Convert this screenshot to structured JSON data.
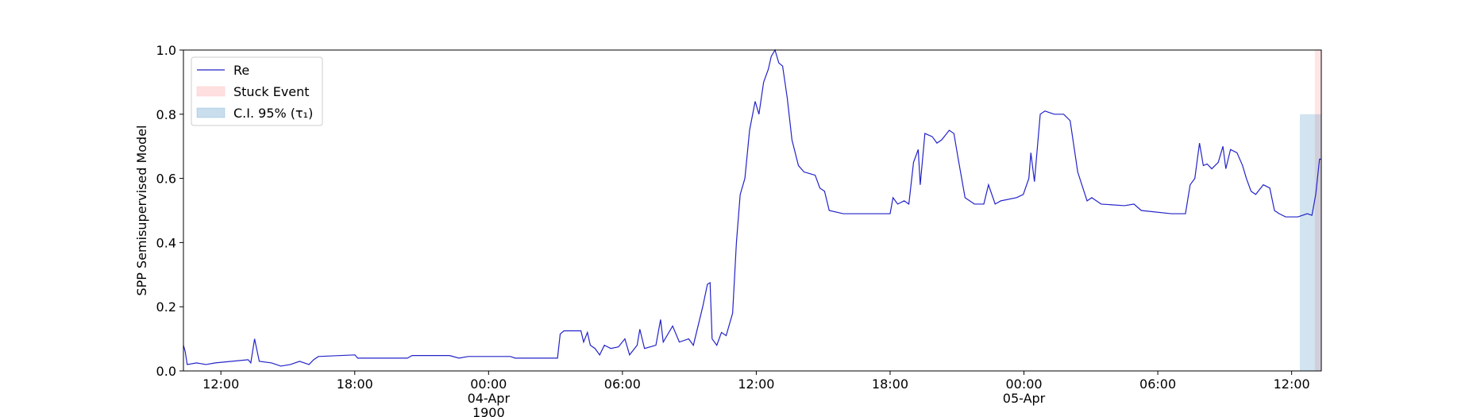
{
  "chart_data": {
    "type": "line",
    "ylabel": "SPP Semisupervised Model",
    "xlim": [
      10.32,
      61.33
    ],
    "ylim": [
      0,
      1
    ],
    "xticks": [
      {
        "value": 12,
        "label": "12:00"
      },
      {
        "value": 18,
        "label": "18:00"
      },
      {
        "value": 24,
        "label": "00:00",
        "date": "04-Apr",
        "year": "1900"
      },
      {
        "value": 30,
        "label": "06:00"
      },
      {
        "value": 36,
        "label": "12:00"
      },
      {
        "value": 42,
        "label": "18:00"
      },
      {
        "value": 48,
        "label": "00:00",
        "date": "05-Apr"
      },
      {
        "value": 54,
        "label": "06:00"
      },
      {
        "value": 60,
        "label": "12:00"
      }
    ],
    "yticks": [
      {
        "value": 0,
        "label": "0.0"
      },
      0.2,
      0.4,
      0.6,
      0.8,
      {
        "value": 1,
        "label": "1.0"
      }
    ],
    "legend": "upper left",
    "series": [
      {
        "name": "Re",
        "color": "#2323c8",
        "x": [
          10.32,
          10.4,
          10.49,
          10.91,
          11.33,
          11.75,
          13.22,
          13.34,
          13.51,
          13.72,
          14.27,
          14.69,
          15.11,
          15.53,
          15.95,
          16.16,
          16.37,
          18.01,
          18.13,
          20.36,
          20.57,
          22.25,
          22.67,
          23.09,
          24.98,
          25.19,
          27.09,
          27.21,
          27.38,
          28.14,
          28.26,
          28.43,
          28.56,
          28.77,
          28.98,
          29.19,
          29.48,
          29.82,
          30.11,
          30.32,
          30.66,
          30.78,
          30.99,
          31.5,
          31.71,
          31.83,
          32.25,
          32.55,
          32.97,
          33.18,
          33.39,
          33.6,
          33.81,
          33.93,
          34.02,
          34.23,
          34.44,
          34.65,
          34.94,
          35.11,
          35.28,
          35.49,
          35.7,
          35.95,
          36.12,
          36.33,
          36.54,
          36.67,
          36.84,
          37.01,
          37.18,
          37.39,
          37.6,
          37.89,
          38.14,
          38.64,
          38.85,
          39.06,
          39.27,
          39.9,
          40.32,
          42.0,
          42.13,
          42.34,
          42.63,
          42.84,
          43.05,
          43.26,
          43.35,
          43.56,
          43.89,
          44.1,
          44.31,
          44.65,
          44.86,
          45.03,
          45.36,
          45.78,
          46.2,
          46.41,
          46.71,
          46.96,
          47.67,
          47.97,
          48.22,
          48.31,
          48.47,
          48.73,
          48.94,
          49.36,
          49.78,
          50.07,
          50.41,
          50.83,
          51.04,
          51.46,
          52.51,
          52.93,
          53.26,
          54.61,
          55.24,
          55.45,
          55.66,
          55.87,
          56.04,
          56.21,
          56.42,
          56.71,
          56.92,
          57.05,
          57.26,
          57.55,
          57.8,
          57.97,
          58.18,
          58.39,
          58.73,
          59.02,
          59.23,
          59.44,
          59.73,
          60.28,
          60.7,
          60.91,
          61.08,
          61.25,
          61.33
        ],
        "values": [
          0.08,
          0.06,
          0.02,
          0.025,
          0.02,
          0.025,
          0.035,
          0.025,
          0.1,
          0.03,
          0.025,
          0.015,
          0.02,
          0.03,
          0.02,
          0.035,
          0.045,
          0.05,
          0.04,
          0.04,
          0.048,
          0.048,
          0.04,
          0.045,
          0.045,
          0.04,
          0.04,
          0.115,
          0.125,
          0.125,
          0.09,
          0.12,
          0.08,
          0.07,
          0.05,
          0.08,
          0.07,
          0.075,
          0.1,
          0.05,
          0.08,
          0.13,
          0.07,
          0.08,
          0.16,
          0.09,
          0.14,
          0.09,
          0.1,
          0.08,
          0.14,
          0.2,
          0.27,
          0.275,
          0.1,
          0.08,
          0.12,
          0.11,
          0.18,
          0.4,
          0.55,
          0.6,
          0.75,
          0.84,
          0.8,
          0.9,
          0.94,
          0.98,
          1.0,
          0.96,
          0.95,
          0.85,
          0.72,
          0.64,
          0.62,
          0.61,
          0.57,
          0.56,
          0.5,
          0.49,
          0.49,
          0.49,
          0.54,
          0.52,
          0.53,
          0.52,
          0.65,
          0.69,
          0.58,
          0.74,
          0.73,
          0.71,
          0.72,
          0.75,
          0.74,
          0.67,
          0.54,
          0.52,
          0.52,
          0.58,
          0.52,
          0.53,
          0.54,
          0.55,
          0.6,
          0.68,
          0.59,
          0.8,
          0.81,
          0.8,
          0.8,
          0.78,
          0.62,
          0.53,
          0.54,
          0.52,
          0.515,
          0.52,
          0.5,
          0.49,
          0.49,
          0.58,
          0.6,
          0.71,
          0.64,
          0.645,
          0.63,
          0.65,
          0.7,
          0.63,
          0.69,
          0.68,
          0.64,
          0.6,
          0.56,
          0.55,
          0.58,
          0.57,
          0.5,
          0.49,
          0.48,
          0.48,
          0.49,
          0.485,
          0.55,
          0.66,
          0.66
        ]
      }
    ],
    "spans": [
      {
        "name": "Stuck Event",
        "color": "#ffcccc",
        "x": [
          61.04,
          61.33
        ],
        "y": [
          0,
          1
        ],
        "opacity": 0.5
      },
      {
        "name": "C.I. 95% (τ₁)",
        "color": "#1f77b4",
        "x": [
          60.37,
          61.33
        ],
        "y": [
          0,
          0.8
        ],
        "opacity": 0.2
      }
    ]
  }
}
